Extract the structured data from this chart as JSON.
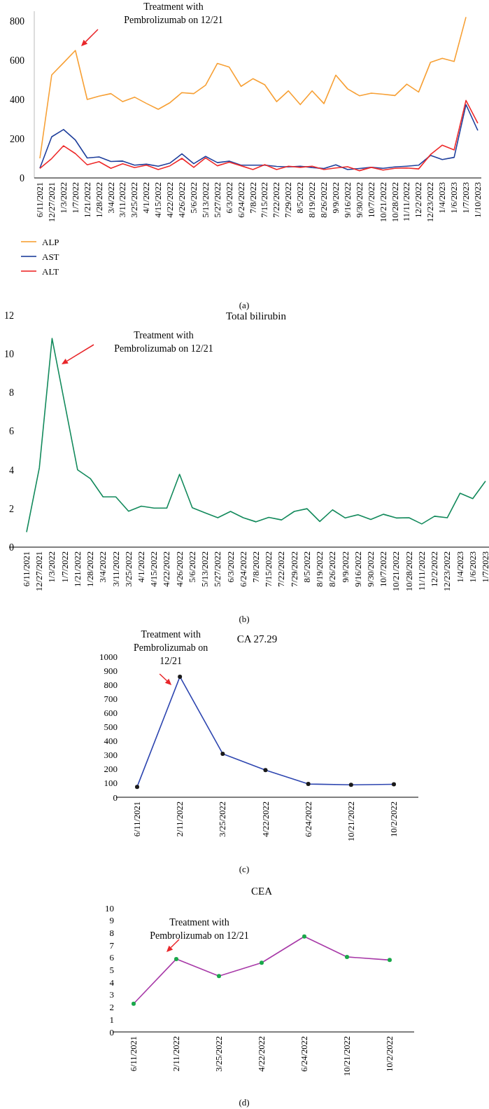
{
  "chart_data": [
    {
      "type": "line",
      "categories": [
        "6/11/2021",
        "12/27/2021",
        "1/3/2022",
        "1/7/2022",
        "1/21/2022",
        "1/28/2022",
        "3/4/2022",
        "3/11/2022",
        "3/25/2022",
        "4/1/2022",
        "4/15/2022",
        "4/22/2022",
        "4/26/2022",
        "5/6/2022",
        "5/13/2022",
        "5/27/2022",
        "6/3/2022",
        "6/24/2022",
        "7/8/2022",
        "7/15/2022",
        "7/22/2022",
        "7/29/2022",
        "8/5/2022",
        "8/19/2022",
        "8/26/2022",
        "9/9/2022",
        "9/16/2022",
        "9/30/2022",
        "10/7/2022",
        "10/21/2022",
        "10/28/2022",
        "11/11/2022",
        "12/2/2022",
        "12/23/2022",
        "1/4/2023",
        "1/6/2023",
        "1/7/2023",
        "1/10/2023"
      ],
      "series": [
        {
          "name": "ALP",
          "color": "#f7a035",
          "values": [
            100,
            525,
            587,
            650,
            400,
            417,
            430,
            389,
            412,
            380,
            350,
            384,
            435,
            430,
            473,
            584,
            565,
            467,
            506,
            475,
            389,
            444,
            374,
            444,
            379,
            524,
            454,
            419,
            432,
            427,
            420,
            478,
            438,
            589,
            610,
            594,
            820,
            null
          ]
        },
        {
          "name": "AST",
          "color": "#1f3f9c",
          "values": [
            50,
            210,
            247,
            193,
            102,
            107,
            84,
            86,
            65,
            70,
            60,
            76,
            123,
            73,
            110,
            78,
            86,
            65,
            65,
            65,
            59,
            56,
            60,
            53,
            48,
            67,
            43,
            48,
            54,
            49,
            56,
            60,
            65,
            115,
            94,
            105,
            374,
            242
          ]
        },
        {
          "name": "ALT",
          "color": "#ee2a2a",
          "values": [
            49,
            99,
            164,
            124,
            67,
            83,
            49,
            72,
            53,
            65,
            43,
            62,
            100,
            54,
            102,
            62,
            80,
            62,
            43,
            68,
            43,
            60,
            54,
            60,
            43,
            51,
            57,
            37,
            54,
            40,
            49,
            51,
            46,
            119,
            167,
            143,
            395,
            279
          ]
        }
      ],
      "ylim": [
        0,
        850
      ],
      "yticks": [
        0,
        200,
        400,
        600,
        800
      ],
      "legend": "bottom left",
      "marker": "none",
      "annotations": [
        "Treatment with Pembrolizumab on 12/21",
        "(a)"
      ]
    },
    {
      "type": "line",
      "title": "Total bilirubin",
      "categories": [
        "6/11/2021",
        "12/27/2021",
        "1/3/2022",
        "1/7/2022",
        "1/21/2022",
        "1/28/2022",
        "3/4/2022",
        "3/11/2022",
        "3/25/2022",
        "4/1/2022",
        "4/15/2022",
        "4/22/2022",
        "4/26/2022",
        "5/6/2022",
        "5/13/2022",
        "5/27/2022",
        "6/3/2022",
        "6/24/2022",
        "7/8/2022",
        "7/15/2022",
        "7/22/2022",
        "7/29/2022",
        "8/5/2022",
        "8/19/2022",
        "8/26/2022",
        "9/9/2022",
        "9/16/2022",
        "9/30/2022",
        "10/7/2022",
        "10/21/2022",
        "10/28/2022",
        "11/11/2022",
        "12/2/2022",
        "12/23/2022",
        "1/4/2023",
        "1/6/2023",
        "1/7/2023"
      ],
      "series": [
        {
          "color": "#138a5c",
          "values": [
            0.78,
            4.1,
            10.8,
            7.4,
            4.0,
            3.55,
            2.6,
            2.6,
            1.86,
            2.12,
            2.02,
            2.02,
            3.77,
            2.04,
            1.78,
            1.52,
            1.85,
            1.52,
            1.31,
            1.54,
            1.41,
            1.85,
            1.99,
            1.33,
            1.93,
            1.51,
            1.68,
            1.43,
            1.7,
            1.51,
            1.52,
            1.2,
            1.6,
            1.52,
            2.79,
            2.51,
            3.42
          ]
        }
      ],
      "ylim": [
        0,
        12
      ],
      "yticks": [
        0,
        2,
        4,
        6,
        8,
        10,
        12
      ],
      "marker": "none",
      "annotations": [
        "Treatment with Pembrolizumab on 12/21",
        "(b)"
      ]
    },
    {
      "type": "line",
      "title": "CA 27.29",
      "categories": [
        "6/11/2021",
        "2/11/2022",
        "3/25/2022",
        "4/22/2022",
        "6/24/2022",
        "10/21/2022",
        "10/2/2022"
      ],
      "series": [
        {
          "color": "#2e46b0",
          "colors": [
            "#1a1a1a",
            "#1a1a1a",
            "#1a1a1a",
            "#1a1a1a",
            "#1a1a1a",
            "#1a1a1a",
            "#1a1a1a"
          ],
          "values": [
            74,
            856,
            309,
            193,
            94,
            88,
            92
          ]
        }
      ],
      "ylim": [
        0,
        1000
      ],
      "yticks": [
        0,
        100,
        200,
        300,
        400,
        500,
        600,
        700,
        800,
        900,
        1000
      ],
      "marker": "circle",
      "annotations": [
        {
          "text": "Treatment with Pembrolizumab on 12/21",
          "x": "2/11/2022",
          "y": 856
        },
        "(c)"
      ]
    },
    {
      "type": "line",
      "title": "CEA",
      "categories": [
        "6/11/2021",
        "2/11/2022",
        "3/25/2022",
        "4/22/2022",
        "6/24/2022",
        "10/21/2022",
        "10/2/2022"
      ],
      "series": [
        {
          "color": "#a83aa8",
          "colors": [
            "#19a84a",
            "#19a84a",
            "#19a84a",
            "#19a84a",
            "#19a84a",
            "#19a84a",
            "#19a84a"
          ],
          "values": [
            2.27,
            5.88,
            4.51,
            5.58,
            7.7,
            6.05,
            5.8
          ]
        }
      ],
      "ylim": [
        0,
        10
      ],
      "yticks": [
        0,
        1,
        2,
        3,
        4,
        5,
        6,
        7,
        8,
        9,
        10
      ],
      "marker": "circle",
      "annotations": [
        {
          "text": "Treatment with Pembrolizumab on 12/21",
          "x": "2/11/2022",
          "y": 5.88
        },
        "(d)"
      ]
    }
  ]
}
